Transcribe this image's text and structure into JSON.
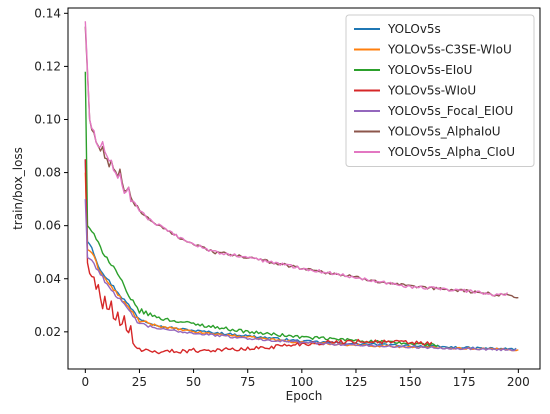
{
  "chart_data": {
    "type": "line",
    "title": "",
    "xlabel": "Epoch",
    "ylabel": "train/box_loss",
    "xlim": [
      -8,
      210
    ],
    "ylim": [
      0.006,
      0.142
    ],
    "xticks": [
      0,
      25,
      50,
      75,
      100,
      125,
      150,
      175,
      200
    ],
    "yticks": [
      0.02,
      0.04,
      0.06,
      0.08,
      0.1,
      0.12,
      0.14
    ],
    "ytick_labels": [
      "0.02",
      "0.04",
      "0.06",
      "0.08",
      "0.10",
      "0.12",
      "0.14"
    ],
    "grid": false,
    "legend_position": "top-right",
    "series": [
      {
        "name": "YOLOv5s",
        "color": "#1f77b4",
        "style": "low",
        "end": 199,
        "noise": 0.0004,
        "points": [
          [
            0,
            0.085
          ],
          [
            1,
            0.054
          ],
          [
            3,
            0.052
          ],
          [
            6,
            0.045
          ],
          [
            10,
            0.04
          ],
          [
            15,
            0.035
          ],
          [
            20,
            0.03
          ],
          [
            25,
            0.025
          ],
          [
            35,
            0.022
          ],
          [
            50,
            0.0205
          ],
          [
            75,
            0.0185
          ],
          [
            100,
            0.0165
          ],
          [
            125,
            0.0155
          ],
          [
            150,
            0.0148
          ],
          [
            175,
            0.014
          ],
          [
            199,
            0.0135
          ]
        ]
      },
      {
        "name": "YOLOv5s-C3SE-WIoU",
        "color": "#ff7f0e",
        "style": "low",
        "end": 200,
        "noise": 0.0004,
        "points": [
          [
            0,
            0.08
          ],
          [
            1,
            0.051
          ],
          [
            3,
            0.05
          ],
          [
            6,
            0.044
          ],
          [
            10,
            0.039
          ],
          [
            15,
            0.034
          ],
          [
            20,
            0.029
          ],
          [
            25,
            0.024
          ],
          [
            35,
            0.022
          ],
          [
            50,
            0.02
          ],
          [
            75,
            0.018
          ],
          [
            100,
            0.016
          ],
          [
            125,
            0.015
          ],
          [
            150,
            0.0143
          ],
          [
            175,
            0.0138
          ],
          [
            200,
            0.0132
          ]
        ]
      },
      {
        "name": "YOLOv5s-EIoU",
        "color": "#2ca02c",
        "style": "low",
        "end": 163,
        "noise": 0.0006,
        "points": [
          [
            0,
            0.118
          ],
          [
            1,
            0.06
          ],
          [
            3,
            0.058
          ],
          [
            6,
            0.053
          ],
          [
            10,
            0.048
          ],
          [
            15,
            0.042
          ],
          [
            20,
            0.033
          ],
          [
            25,
            0.028
          ],
          [
            35,
            0.025
          ],
          [
            50,
            0.023
          ],
          [
            75,
            0.02
          ],
          [
            100,
            0.018
          ],
          [
            125,
            0.0168
          ],
          [
            150,
            0.0155
          ],
          [
            163,
            0.015
          ]
        ]
      },
      {
        "name": "YOLOv5s-WIoU",
        "color": "#d62728",
        "style": "wiou",
        "end": 160,
        "noise": 0.0008,
        "points": [
          [
            0,
            0.085
          ],
          [
            1,
            0.046
          ],
          [
            2,
            0.042
          ],
          [
            4,
            0.04
          ],
          [
            6,
            0.033
          ],
          [
            8,
            0.03
          ],
          [
            12,
            0.027
          ],
          [
            16,
            0.023
          ],
          [
            20,
            0.019
          ],
          [
            25,
            0.013
          ],
          [
            35,
            0.0125
          ],
          [
            50,
            0.013
          ],
          [
            75,
            0.0135
          ],
          [
            100,
            0.0155
          ],
          [
            125,
            0.0165
          ],
          [
            150,
            0.016
          ],
          [
            160,
            0.0155
          ]
        ]
      },
      {
        "name": "YOLOv5s_Focal_EIOU",
        "color": "#9467bd",
        "style": "low",
        "end": 199,
        "noise": 0.0004,
        "points": [
          [
            0,
            0.07
          ],
          [
            1,
            0.048
          ],
          [
            3,
            0.047
          ],
          [
            6,
            0.043
          ],
          [
            10,
            0.038
          ],
          [
            15,
            0.033
          ],
          [
            20,
            0.028
          ],
          [
            25,
            0.023
          ],
          [
            35,
            0.021
          ],
          [
            50,
            0.0195
          ],
          [
            75,
            0.0175
          ],
          [
            100,
            0.016
          ],
          [
            125,
            0.015
          ],
          [
            150,
            0.0143
          ],
          [
            175,
            0.0137
          ],
          [
            199,
            0.0132
          ]
        ]
      },
      {
        "name": "YOLOv5s_AlphaIoU",
        "color": "#8c564b",
        "style": "high",
        "end": 200,
        "noise": 0.0006,
        "points": [
          [
            0,
            0.135
          ],
          [
            2,
            0.1
          ],
          [
            4,
            0.092
          ],
          [
            6,
            0.09
          ],
          [
            8,
            0.086
          ],
          [
            10,
            0.085
          ],
          [
            12,
            0.081
          ],
          [
            14,
            0.08
          ],
          [
            16,
            0.078
          ],
          [
            18,
            0.074
          ],
          [
            20,
            0.071
          ],
          [
            25,
            0.066
          ],
          [
            30,
            0.062
          ],
          [
            40,
            0.057
          ],
          [
            50,
            0.053
          ],
          [
            60,
            0.05
          ],
          [
            75,
            0.048
          ],
          [
            100,
            0.044
          ],
          [
            125,
            0.0405
          ],
          [
            150,
            0.037
          ],
          [
            175,
            0.0355
          ],
          [
            190,
            0.034
          ],
          [
            195,
            0.034
          ],
          [
            200,
            0.033
          ]
        ]
      },
      {
        "name": "YOLOv5s_Alpha_CIoU",
        "color": "#e377c2",
        "style": "high",
        "end": 195,
        "noise": 0.0006,
        "points": [
          [
            0,
            0.137
          ],
          [
            2,
            0.1
          ],
          [
            4,
            0.093
          ],
          [
            6,
            0.09
          ],
          [
            8,
            0.088
          ],
          [
            10,
            0.086
          ],
          [
            12,
            0.082
          ],
          [
            14,
            0.08
          ],
          [
            16,
            0.077
          ],
          [
            18,
            0.073
          ],
          [
            20,
            0.071
          ],
          [
            25,
            0.066
          ],
          [
            30,
            0.062
          ],
          [
            40,
            0.057
          ],
          [
            50,
            0.053
          ],
          [
            60,
            0.05
          ],
          [
            75,
            0.048
          ],
          [
            100,
            0.044
          ],
          [
            125,
            0.0405
          ],
          [
            150,
            0.037
          ],
          [
            175,
            0.0355
          ],
          [
            190,
            0.034
          ],
          [
            195,
            0.0345
          ]
        ]
      }
    ]
  }
}
